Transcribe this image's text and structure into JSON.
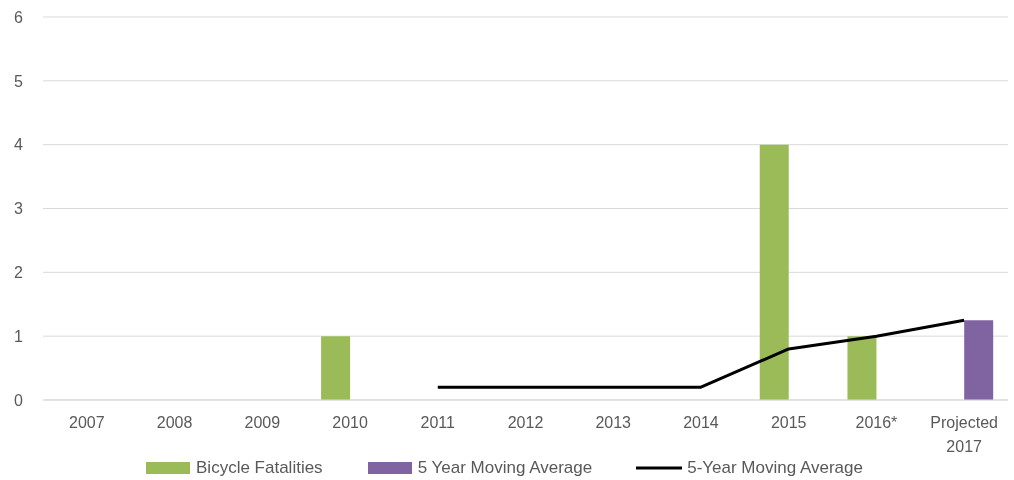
{
  "chart_data": {
    "type": "bar",
    "categories": [
      "2007",
      "2008",
      "2009",
      "2010",
      "2011",
      "2012",
      "2013",
      "2014",
      "2015",
      "2016*",
      "Projected 2017"
    ],
    "series": [
      {
        "name": "Bicycle Fatalities",
        "color": "#9bbb59",
        "values": [
          null,
          null,
          null,
          1,
          null,
          null,
          null,
          null,
          4,
          1,
          null
        ]
      },
      {
        "name": "5 Year Moving Average",
        "color": "#8064a2",
        "values": [
          null,
          null,
          null,
          null,
          null,
          null,
          null,
          null,
          null,
          null,
          1.25
        ]
      },
      {
        "name": "5-Year Moving Average",
        "type": "line",
        "color": "#000000",
        "values": [
          null,
          null,
          null,
          null,
          0.2,
          0.2,
          0.2,
          0.2,
          0.8,
          1.0,
          1.25
        ]
      }
    ],
    "ylim": [
      0,
      6
    ],
    "yticks": [
      0,
      1,
      2,
      3,
      4,
      5,
      6
    ],
    "grid": "y",
    "legend": "bottom",
    "marker": "none",
    "line_style": "solid"
  }
}
